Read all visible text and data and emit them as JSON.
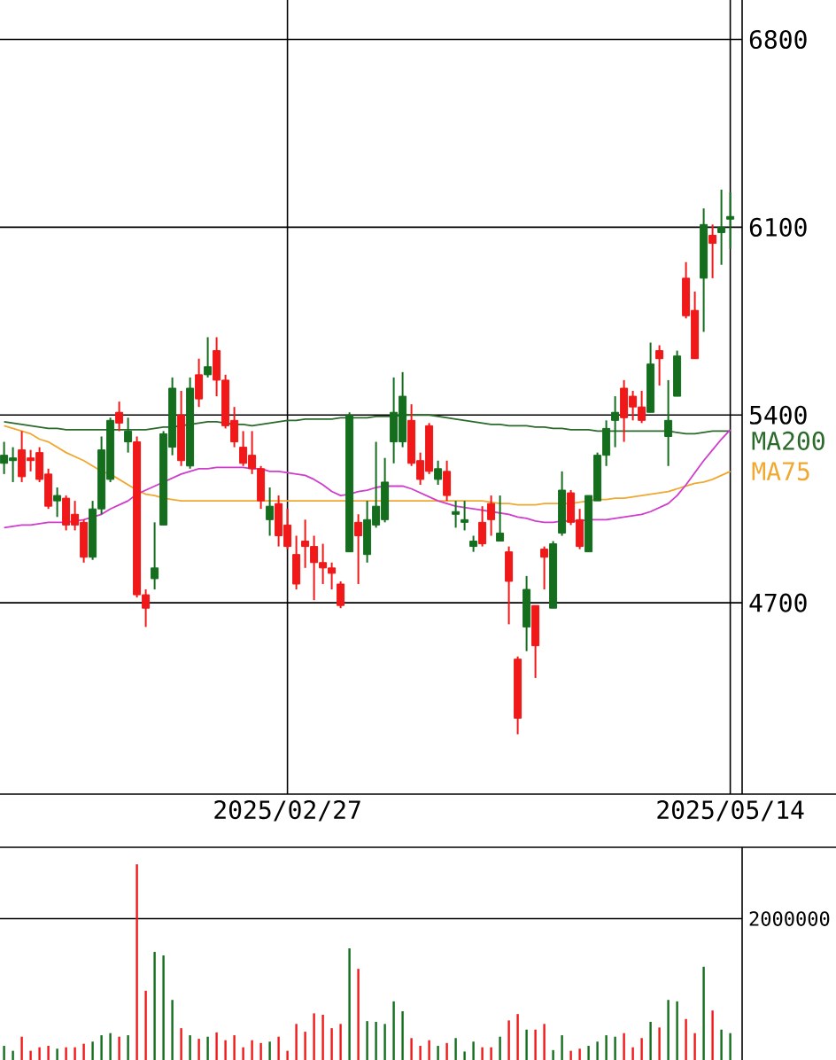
{
  "chart_data": [
    {
      "type": "candlestick",
      "categories": [
        null,
        null,
        null,
        null,
        null,
        null,
        null,
        null,
        null,
        null,
        null,
        null,
        null,
        null,
        null,
        null,
        null,
        null,
        null,
        null,
        null,
        null,
        null,
        null,
        null,
        null,
        null,
        null,
        null,
        null,
        null,
        null,
        "2025/02/27",
        null,
        null,
        null,
        null,
        null,
        null,
        null,
        null,
        null,
        null,
        null,
        null,
        null,
        null,
        null,
        null,
        null,
        null,
        null,
        null,
        null,
        null,
        null,
        null,
        null,
        null,
        null,
        null,
        null,
        null,
        null,
        null,
        null,
        null,
        null,
        null,
        null,
        null,
        null,
        null,
        null,
        null,
        null,
        null,
        null,
        null,
        null,
        null,
        null,
        "2025/05/14"
      ],
      "ohlc": [
        [
          5220,
          5300,
          5180,
          5250
        ],
        [
          5230,
          5280,
          5150,
          5240
        ],
        [
          5270,
          5340,
          5150,
          5170
        ],
        [
          5240,
          5270,
          5190,
          5230
        ],
        [
          5260,
          5280,
          5150,
          5160
        ],
        [
          5180,
          5200,
          5050,
          5060
        ],
        [
          5080,
          5130,
          5020,
          5100
        ],
        [
          5090,
          5100,
          4970,
          4990
        ],
        [
          5030,
          5080,
          4970,
          4990
        ],
        [
          5000,
          5010,
          4850,
          4870
        ],
        [
          4870,
          5080,
          4860,
          5050
        ],
        [
          5050,
          5320,
          5030,
          5270
        ],
        [
          5160,
          5390,
          5150,
          5380
        ],
        [
          5410,
          5450,
          5340,
          5370
        ],
        [
          5300,
          5390,
          5260,
          5340
        ],
        [
          5300,
          5320,
          4720,
          4730
        ],
        [
          4730,
          4750,
          4610,
          4680
        ],
        [
          4790,
          5000,
          4750,
          4830
        ],
        [
          4990,
          5340,
          4990,
          5330
        ],
        [
          5280,
          5540,
          5250,
          5500
        ],
        [
          5400,
          5490,
          5210,
          5230
        ],
        [
          5210,
          5540,
          5200,
          5500
        ],
        [
          5550,
          5610,
          5430,
          5460
        ],
        [
          5550,
          5690,
          5540,
          5580
        ],
        [
          5640,
          5690,
          5470,
          5530
        ],
        [
          5530,
          5550,
          5350,
          5360
        ],
        [
          5380,
          5430,
          5280,
          5300
        ],
        [
          5280,
          5340,
          5210,
          5220
        ],
        [
          5250,
          5340,
          5180,
          5200
        ],
        [
          5200,
          5210,
          5050,
          5080
        ],
        [
          5010,
          5130,
          4950,
          5060
        ],
        [
          5070,
          5100,
          4910,
          4950
        ],
        [
          4990,
          5050,
          4900,
          4910
        ],
        [
          4880,
          4950,
          4750,
          4770
        ],
        [
          4930,
          5010,
          4830,
          4910
        ],
        [
          4910,
          4950,
          4710,
          4850
        ],
        [
          4850,
          4920,
          4770,
          4830
        ],
        [
          4830,
          4850,
          4750,
          4810
        ],
        [
          4770,
          4780,
          4680,
          4690
        ],
        [
          4890,
          5410,
          4890,
          5400
        ],
        [
          5000,
          5030,
          4770,
          4950
        ],
        [
          4880,
          5080,
          4850,
          5010
        ],
        [
          4990,
          5300,
          4980,
          5060
        ],
        [
          5010,
          5240,
          5000,
          5150
        ],
        [
          5300,
          5540,
          5220,
          5410
        ],
        [
          5300,
          5560,
          5280,
          5470
        ],
        [
          5380,
          5440,
          5210,
          5220
        ],
        [
          5230,
          5260,
          5140,
          5160
        ],
        [
          5360,
          5370,
          5180,
          5190
        ],
        [
          5160,
          5230,
          5140,
          5200
        ],
        [
          5190,
          5230,
          5080,
          5100
        ],
        [
          5030,
          5080,
          4980,
          5040
        ],
        [
          5000,
          5080,
          4970,
          5010
        ],
        [
          4910,
          4950,
          4890,
          4930
        ],
        [
          5000,
          5060,
          4910,
          4920
        ],
        [
          5070,
          5100,
          4950,
          5010
        ],
        [
          4930,
          5100,
          4930,
          4960
        ],
        [
          4890,
          4910,
          4620,
          4780
        ],
        [
          4490,
          4500,
          4210,
          4270
        ],
        [
          4610,
          4800,
          4520,
          4750
        ],
        [
          4690,
          4690,
          4420,
          4540
        ],
        [
          4900,
          4910,
          4750,
          4870
        ],
        [
          4680,
          4930,
          4680,
          4920
        ],
        [
          4960,
          5190,
          4950,
          5120
        ],
        [
          5110,
          5120,
          4990,
          5000
        ],
        [
          5010,
          5050,
          4900,
          4910
        ],
        [
          4890,
          5100,
          4890,
          5100
        ],
        [
          5080,
          5260,
          5080,
          5250
        ],
        [
          5250,
          5380,
          5210,
          5350
        ],
        [
          5380,
          5470,
          5280,
          5410
        ],
        [
          5500,
          5530,
          5300,
          5390
        ],
        [
          5470,
          5490,
          5380,
          5430
        ],
        [
          5430,
          5490,
          5370,
          5380
        ],
        [
          5410,
          5670,
          5410,
          5590
        ],
        [
          5640,
          5660,
          5510,
          5610
        ],
        [
          5320,
          5530,
          5210,
          5380
        ],
        [
          5470,
          5640,
          5470,
          5620
        ],
        [
          5910,
          5970,
          5760,
          5770
        ],
        [
          5790,
          5860,
          5610,
          5610
        ],
        [
          5910,
          6170,
          5710,
          6110
        ],
        [
          6070,
          6110,
          5910,
          6040
        ],
        [
          6080,
          6240,
          5960,
          6100
        ],
        [
          6130,
          6230,
          6020,
          6140
        ]
      ],
      "colors": [
        "#146e1e",
        "#146e1e",
        "#f01818",
        "#f01818",
        "#f01818",
        "#f01818",
        "#146e1e",
        "#f01818",
        "#f01818",
        "#f01818",
        "#146e1e",
        "#146e1e",
        "#146e1e",
        "#f01818",
        "#146e1e",
        "#f01818",
        "#f01818",
        "#146e1e",
        "#146e1e",
        "#146e1e",
        "#f01818",
        "#146e1e",
        "#f01818",
        "#146e1e",
        "#f01818",
        "#f01818",
        "#f01818",
        "#f01818",
        "#f01818",
        "#f01818",
        "#146e1e",
        "#f01818",
        "#f01818",
        "#f01818",
        "#f01818",
        "#f01818",
        "#f01818",
        "#f01818",
        "#f01818",
        "#146e1e",
        "#f01818",
        "#146e1e",
        "#146e1e",
        "#146e1e",
        "#146e1e",
        "#146e1e",
        "#f01818",
        "#f01818",
        "#f01818",
        "#146e1e",
        "#f01818",
        "#146e1e",
        "#146e1e",
        "#146e1e",
        "#f01818",
        "#f01818",
        "#146e1e",
        "#f01818",
        "#f01818",
        "#146e1e",
        "#f01818",
        "#f01818",
        "#146e1e",
        "#146e1e",
        "#f01818",
        "#f01818",
        "#146e1e",
        "#146e1e",
        "#146e1e",
        "#146e1e",
        "#f01818",
        "#f01818",
        "#f01818",
        "#146e1e",
        "#f01818",
        "#146e1e",
        "#146e1e",
        "#f01818",
        "#f01818",
        "#146e1e",
        "#f01818",
        "#146e1e",
        "#146e1e"
      ],
      "ylim": [
        3987,
        6947
      ],
      "yticks": [
        6800,
        6100,
        5400,
        4700
      ],
      "grid": true,
      "series": [
        {
          "name": "MA200",
          "type": "line",
          "color": "#2b6a2b",
          "values": [
            5375,
            5370,
            5365,
            5360,
            5355,
            5350,
            5350,
            5345,
            5345,
            5345,
            5345,
            5345,
            5345,
            5345,
            5345,
            5345,
            5345,
            5350,
            5355,
            5355,
            5360,
            5365,
            5370,
            5375,
            5375,
            5370,
            5365,
            5365,
            5360,
            5365,
            5370,
            5375,
            5380,
            5380,
            5385,
            5385,
            5385,
            5385,
            5390,
            5390,
            5390,
            5390,
            5395,
            5395,
            5395,
            5400,
            5400,
            5400,
            5400,
            5395,
            5390,
            5385,
            5380,
            5375,
            5370,
            5365,
            5365,
            5360,
            5360,
            5360,
            5355,
            5355,
            5350,
            5350,
            5345,
            5345,
            5345,
            5340,
            5340,
            5340,
            5340,
            5340,
            5340,
            5340,
            5340,
            5340,
            5335,
            5330,
            5330,
            5335,
            5340,
            5340,
            5340
          ]
        },
        {
          "name": "MA75",
          "type": "line",
          "color": "#f0a830",
          "values": [
            5360,
            5350,
            5340,
            5330,
            5310,
            5300,
            5280,
            5260,
            5245,
            5230,
            5210,
            5190,
            5180,
            5160,
            5140,
            5120,
            5105,
            5100,
            5090,
            5085,
            5080,
            5080,
            5080,
            5080,
            5080,
            5080,
            5080,
            5080,
            5080,
            5080,
            5080,
            5080,
            5080,
            5080,
            5080,
            5080,
            5080,
            5080,
            5080,
            5080,
            5080,
            5080,
            5080,
            5080,
            5080,
            5080,
            5080,
            5080,
            5080,
            5080,
            5080,
            5080,
            5080,
            5080,
            5080,
            5075,
            5070,
            5070,
            5065,
            5065,
            5065,
            5070,
            5070,
            5070,
            5070,
            5075,
            5080,
            5085,
            5085,
            5090,
            5090,
            5095,
            5100,
            5105,
            5110,
            5115,
            5125,
            5135,
            5145,
            5150,
            5160,
            5175,
            5190
          ]
        },
        {
          "type": "line",
          "color": "#d03ccc",
          "values": [
            4980,
            4985,
            4990,
            4990,
            4995,
            5000,
            5000,
            5000,
            5005,
            5010,
            5020,
            5030,
            5050,
            5065,
            5080,
            5105,
            5120,
            5135,
            5150,
            5165,
            5180,
            5190,
            5200,
            5200,
            5205,
            5205,
            5205,
            5205,
            5200,
            5200,
            5190,
            5190,
            5185,
            5180,
            5175,
            5160,
            5140,
            5115,
            5100,
            5105,
            5115,
            5120,
            5130,
            5135,
            5135,
            5135,
            5125,
            5110,
            5095,
            5080,
            5070,
            5060,
            5055,
            5050,
            5045,
            5040,
            5035,
            5030,
            5020,
            5015,
            5005,
            5000,
            5000,
            5005,
            5005,
            5005,
            5010,
            5010,
            5010,
            5015,
            5020,
            5025,
            5030,
            5040,
            5055,
            5070,
            5100,
            5140,
            5185,
            5230,
            5270,
            5310,
            5345
          ]
        }
      ]
    },
    {
      "type": "bar",
      "categories": [
        null,
        null,
        null,
        null,
        null,
        null,
        null,
        null,
        null,
        null,
        null,
        null,
        null,
        null,
        null,
        null,
        null,
        null,
        null,
        null,
        null,
        null,
        null,
        null,
        null,
        null,
        null,
        null,
        null,
        null,
        null,
        null,
        null,
        null,
        null,
        null,
        null,
        null,
        null,
        null,
        null,
        null,
        null,
        null,
        null,
        null,
        null,
        null,
        null,
        null,
        null,
        null,
        null,
        null,
        null,
        null,
        null,
        null,
        null,
        null,
        null,
        null,
        null,
        null,
        null,
        null,
        null,
        null,
        null,
        null,
        null,
        null,
        null,
        null,
        null,
        null,
        null,
        null,
        null,
        null,
        null,
        null,
        null
      ],
      "values": [
        200000,
        130000,
        330000,
        130000,
        180000,
        200000,
        160000,
        180000,
        180000,
        230000,
        260000,
        350000,
        380000,
        330000,
        350000,
        2770000,
        980000,
        1530000,
        1480000,
        850000,
        450000,
        350000,
        300000,
        330000,
        390000,
        280000,
        350000,
        180000,
        280000,
        240000,
        260000,
        330000,
        130000,
        510000,
        400000,
        660000,
        640000,
        450000,
        510000,
        1580000,
        1290000,
        550000,
        540000,
        510000,
        830000,
        690000,
        310000,
        200000,
        280000,
        200000,
        240000,
        310000,
        120000,
        260000,
        180000,
        180000,
        330000,
        560000,
        650000,
        430000,
        430000,
        510000,
        140000,
        350000,
        130000,
        160000,
        200000,
        260000,
        350000,
        330000,
        380000,
        180000,
        310000,
        540000,
        460000,
        850000,
        830000,
        580000,
        380000,
        1320000,
        700000,
        430000,
        380000
      ],
      "colors": [
        "#146e1e",
        "#146e1e",
        "#f01818",
        "#f01818",
        "#f01818",
        "#f01818",
        "#146e1e",
        "#f01818",
        "#f01818",
        "#f01818",
        "#146e1e",
        "#146e1e",
        "#146e1e",
        "#f01818",
        "#146e1e",
        "#f01818",
        "#f01818",
        "#146e1e",
        "#146e1e",
        "#146e1e",
        "#f01818",
        "#146e1e",
        "#f01818",
        "#146e1e",
        "#f01818",
        "#f01818",
        "#f01818",
        "#f01818",
        "#f01818",
        "#f01818",
        "#146e1e",
        "#f01818",
        "#f01818",
        "#f01818",
        "#f01818",
        "#f01818",
        "#f01818",
        "#f01818",
        "#f01818",
        "#146e1e",
        "#f01818",
        "#146e1e",
        "#146e1e",
        "#146e1e",
        "#146e1e",
        "#146e1e",
        "#f01818",
        "#f01818",
        "#f01818",
        "#146e1e",
        "#f01818",
        "#146e1e",
        "#146e1e",
        "#146e1e",
        "#f01818",
        "#f01818",
        "#146e1e",
        "#f01818",
        "#f01818",
        "#146e1e",
        "#f01818",
        "#f01818",
        "#146e1e",
        "#146e1e",
        "#f01818",
        "#f01818",
        "#146e1e",
        "#146e1e",
        "#146e1e",
        "#146e1e",
        "#f01818",
        "#f01818",
        "#f01818",
        "#146e1e",
        "#f01818",
        "#146e1e",
        "#146e1e",
        "#f01818",
        "#f01818",
        "#146e1e",
        "#f01818",
        "#146e1e",
        "#146e1e"
      ],
      "ylim": [
        0,
        3011000
      ],
      "yticks": [
        2000000
      ],
      "grid": "y"
    }
  ]
}
